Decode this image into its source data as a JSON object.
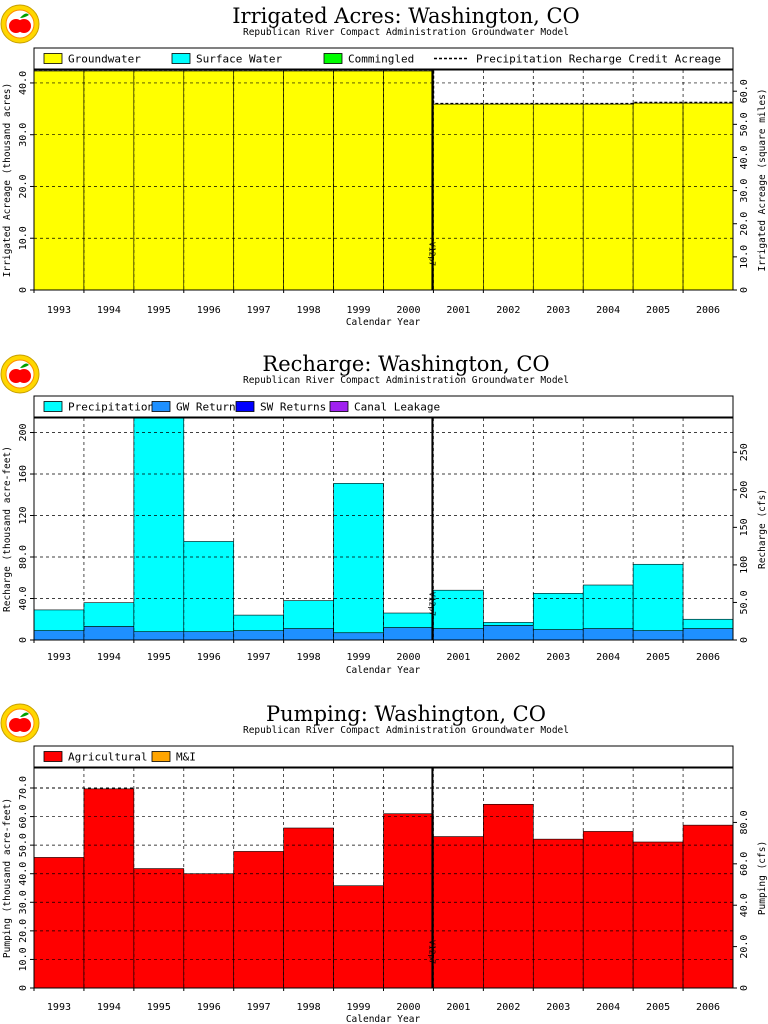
{
  "subtitle": "Republican River Compact Administration Groundwater Model",
  "xlabel": "Calendar Year",
  "marker_label": "V12p7",
  "chart_data": [
    {
      "type": "area",
      "title": "Irrigated Acres: Washington, CO",
      "ylabel": "Irrigated Acreage (thousand acres)",
      "ylabel_right": "Irrigated Acreage (square miles)",
      "categories": [
        "1993",
        "1994",
        "1995",
        "1996",
        "1997",
        "1998",
        "1999",
        "2000",
        "2001",
        "2002",
        "2003",
        "2004",
        "2005",
        "2006"
      ],
      "ylim": [
        0,
        42.5
      ],
      "yticks": [
        "0",
        "10.0",
        "20.0",
        "30.0",
        "40.0"
      ],
      "yticks_values": [
        0,
        10,
        20,
        30,
        40
      ],
      "ylim_right": [
        0,
        66.4
      ],
      "yticks_right": [
        "0",
        "10.0",
        "20.0",
        "30.0",
        "40.0",
        "50.0",
        "60.0"
      ],
      "yticks_right_values": [
        0,
        10,
        20,
        30,
        40,
        50,
        60
      ],
      "legend": [
        {
          "label": "Groundwater",
          "color": "#ffff00",
          "kind": "box"
        },
        {
          "label": "Surface Water",
          "color": "#00ffff",
          "kind": "box"
        },
        {
          "label": "Commingled",
          "color": "#00ff00",
          "kind": "box"
        },
        {
          "label": "Precipitation Recharge Credit Acreage",
          "color": "#000000",
          "kind": "dash"
        }
      ],
      "series": [
        {
          "name": "Groundwater",
          "color": "#ffff00",
          "values": [
            42.3,
            42.3,
            42.3,
            42.3,
            42.3,
            42.3,
            42.3,
            42.3,
            35.9,
            35.9,
            35.9,
            35.9,
            36.1,
            36.1
          ]
        },
        {
          "name": "Surface Water",
          "color": "#00ffff",
          "values": [
            0,
            0,
            0,
            0,
            0,
            0,
            0,
            0,
            0,
            0,
            0,
            0,
            0,
            0
          ]
        },
        {
          "name": "Commingled",
          "color": "#00ff00",
          "values": [
            0,
            0,
            0,
            0,
            0,
            0,
            0,
            0,
            0,
            0,
            0,
            0,
            0,
            0
          ]
        }
      ],
      "precip_credit": [
        42.5,
        42.5,
        42.5,
        42.5,
        42.5,
        42.5,
        42.5,
        42.5,
        36.0,
        36.0,
        36.0,
        36.0,
        36.2,
        36.2
      ]
    },
    {
      "type": "area",
      "title": "Recharge: Washington, CO",
      "ylabel": "Recharge (thousand acre-feet)",
      "ylabel_right": "Recharge (cfs)",
      "categories": [
        "1993",
        "1994",
        "1995",
        "1996",
        "1997",
        "1998",
        "1999",
        "2000",
        "2001",
        "2002",
        "2003",
        "2004",
        "2005",
        "2006"
      ],
      "ylim": [
        0,
        214
      ],
      "yticks": [
        "0",
        "40.0",
        "80.0",
        "120",
        "160",
        "200"
      ],
      "yticks_values": [
        0,
        40,
        80,
        120,
        160,
        200
      ],
      "ylim_right": [
        0,
        295.6
      ],
      "yticks_right": [
        "0",
        "50.0",
        "100",
        "150",
        "200",
        "250"
      ],
      "yticks_right_values": [
        0,
        50,
        100,
        150,
        200,
        250
      ],
      "legend": [
        {
          "label": "Precipitation",
          "color": "#00ffff",
          "kind": "box"
        },
        {
          "label": "GW Returns",
          "color": "#1e90ff",
          "kind": "box"
        },
        {
          "label": "SW Returns",
          "color": "#0000ff",
          "kind": "box"
        },
        {
          "label": "Canal Leakage",
          "color": "#a020f0",
          "kind": "box"
        }
      ],
      "series": [
        {
          "name": "GW Returns",
          "color": "#1e90ff",
          "values": [
            9,
            13,
            8,
            8,
            9,
            11,
            7,
            12,
            11,
            14,
            10,
            11,
            9,
            11
          ]
        },
        {
          "name": "SW Returns",
          "color": "#0000ff",
          "values": [
            0,
            0,
            0,
            0,
            0,
            0,
            0,
            0,
            0,
            0,
            0,
            0,
            0,
            0
          ]
        },
        {
          "name": "Canal Leakage",
          "color": "#a020f0",
          "values": [
            0,
            0,
            0,
            0,
            0,
            0,
            0,
            0,
            0,
            0,
            0,
            0,
            0,
            0
          ]
        },
        {
          "name": "Precipitation",
          "color": "#00ffff",
          "values": [
            20,
            23,
            206,
            87,
            15,
            27,
            144,
            14,
            37,
            3,
            35,
            42,
            64,
            9
          ]
        }
      ]
    },
    {
      "type": "area",
      "title": "Pumping: Washington, CO",
      "ylabel": "Pumping (thousand acre-feet)",
      "ylabel_right": "Pumping (cfs)",
      "categories": [
        "1993",
        "1994",
        "1995",
        "1996",
        "1997",
        "1998",
        "1999",
        "2000",
        "2001",
        "2002",
        "2003",
        "2004",
        "2005",
        "2006"
      ],
      "ylim": [
        0,
        77
      ],
      "yticks": [
        "0",
        "10.0",
        "20.0",
        "30.0",
        "40.0",
        "50.0",
        "60.0",
        "70.0"
      ],
      "yticks_values": [
        0,
        10,
        20,
        30,
        40,
        50,
        60,
        70
      ],
      "ylim_right": [
        0,
        106.3
      ],
      "yticks_right": [
        "0",
        "20.0",
        "40.0",
        "60.0",
        "80.0"
      ],
      "yticks_right_values": [
        0,
        20,
        40,
        60,
        80
      ],
      "legend": [
        {
          "label": "Agricultural",
          "color": "#ff0000",
          "kind": "box"
        },
        {
          "label": "M&I",
          "color": "#ffa500",
          "kind": "box"
        }
      ],
      "series": [
        {
          "name": "Agricultural",
          "color": "#ff0000",
          "values": [
            45.7,
            69.7,
            41.8,
            40.0,
            47.8,
            56.0,
            35.8,
            61.0,
            53.0,
            64.3,
            52.1,
            54.8,
            51.1,
            57.0
          ]
        },
        {
          "name": "M&I",
          "color": "#ffa500",
          "values": [
            0,
            0,
            0,
            0,
            0,
            0,
            0,
            0,
            0,
            0,
            0,
            0,
            0,
            0
          ]
        }
      ],
      "dashed_top": 70
    }
  ]
}
